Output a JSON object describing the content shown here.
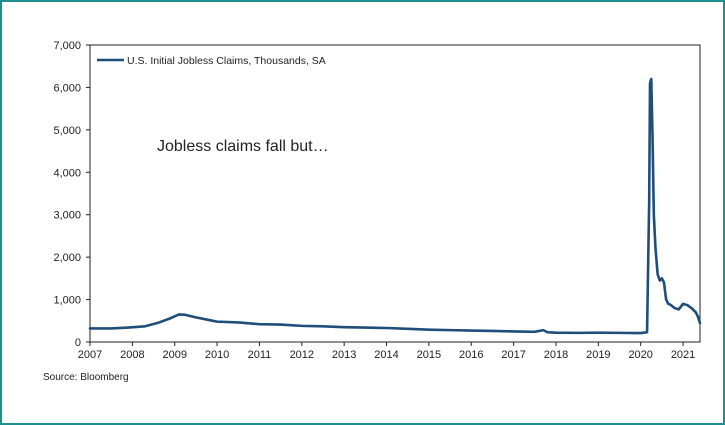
{
  "colors": {
    "line": "#1f4e7a",
    "frame": "#1e8f8f",
    "text": "#222222"
  },
  "source_note": "Source: Bloomberg",
  "chart_data": {
    "type": "line",
    "title": "",
    "xlabel": "",
    "ylabel": "",
    "annotation": "Jobless claims fall but…",
    "x_ticks": [
      "2007",
      "2008",
      "2009",
      "2010",
      "2011",
      "2012",
      "2013",
      "2014",
      "2015",
      "2016",
      "2017",
      "2018",
      "2019",
      "2020",
      "2021"
    ],
    "y_ticks": [
      "0",
      "1,000",
      "2,000",
      "3,000",
      "4,000",
      "5,000",
      "6,000",
      "7,000"
    ],
    "xlim": [
      2007.0,
      2021.4
    ],
    "ylim": [
      0,
      7000
    ],
    "grid": false,
    "legend_position": "top-left",
    "series": [
      {
        "name": "U.S. Initial Jobless Claims, Thousands, SA",
        "x": [
          2007.0,
          2007.5,
          2007.9,
          2008.3,
          2008.6,
          2008.9,
          2009.1,
          2009.25,
          2009.5,
          2009.8,
          2010.0,
          2010.5,
          2011.0,
          2011.5,
          2012.0,
          2012.5,
          2013.0,
          2013.5,
          2014.0,
          2014.5,
          2015.0,
          2015.5,
          2016.0,
          2016.5,
          2017.0,
          2017.5,
          2017.7,
          2017.8,
          2018.0,
          2018.5,
          2019.0,
          2019.5,
          2020.0,
          2020.15,
          2020.2,
          2020.22,
          2020.25,
          2020.28,
          2020.31,
          2020.35,
          2020.4,
          2020.45,
          2020.5,
          2020.55,
          2020.6,
          2020.65,
          2020.7,
          2020.8,
          2020.9,
          2021.0,
          2021.1,
          2021.2,
          2021.3,
          2021.35,
          2021.4
        ],
        "values": [
          320,
          320,
          340,
          370,
          450,
          560,
          650,
          640,
          580,
          520,
          480,
          460,
          420,
          410,
          380,
          370,
          350,
          340,
          330,
          310,
          290,
          280,
          270,
          260,
          250,
          240,
          280,
          230,
          220,
          215,
          220,
          215,
          210,
          230,
          3300,
          6100,
          6200,
          4800,
          3000,
          2200,
          1600,
          1450,
          1500,
          1400,
          1000,
          900,
          880,
          800,
          770,
          900,
          870,
          800,
          700,
          600,
          450
        ]
      }
    ]
  }
}
